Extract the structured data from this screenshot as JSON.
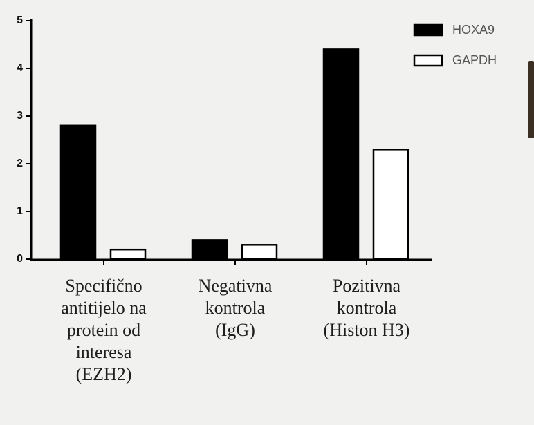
{
  "chart_data": {
    "type": "bar",
    "categories": [
      "Specifično\nantitijelo na\nprotein od\ninteresa\n(EZH2)",
      "Negativna\nkontrola\n(IgG)",
      "Pozitivna\nkontrola\n(Histon H3)"
    ],
    "series": [
      {
        "name": "HOXA9",
        "color": "#000000",
        "values": [
          2.8,
          0.4,
          4.4
        ]
      },
      {
        "name": "GAPDH",
        "color": "#ffffff",
        "values": [
          0.2,
          0.3,
          2.3
        ]
      }
    ],
    "ylim": [
      0,
      5
    ],
    "yticks": [
      0,
      1,
      2,
      3,
      4,
      5
    ],
    "legend": "top-right"
  }
}
